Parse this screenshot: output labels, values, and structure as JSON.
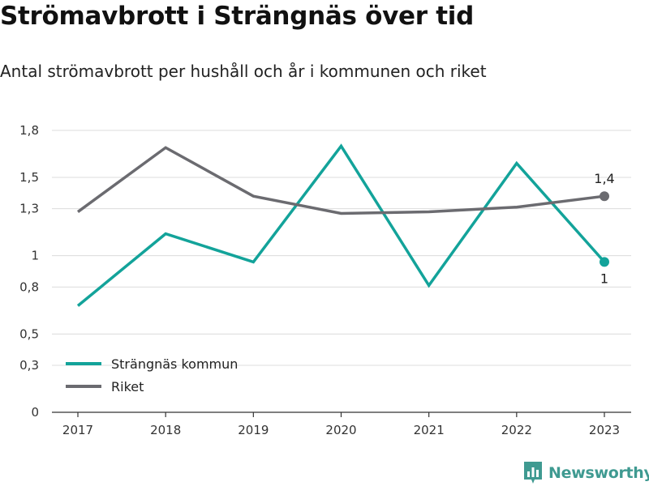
{
  "header": {
    "title": "Strömavbrott i Strängnäs över tid",
    "subtitle": "Antal strömavbrott per hushåll och år i kommunen och riket"
  },
  "brand": {
    "name": "Newsworthy"
  },
  "chart_data": {
    "type": "line",
    "title": "Strömavbrott i Strängnäs över tid",
    "subtitle": "Antal strömavbrott per hushåll och år i kommunen och riket",
    "xlabel": "",
    "ylabel": "",
    "categories": [
      "2017",
      "2018",
      "2019",
      "2020",
      "2021",
      "2022",
      "2023"
    ],
    "y_ticks": [
      0,
      0.3,
      0.5,
      0.8,
      1,
      1.3,
      1.5,
      1.8
    ],
    "y_tick_labels": [
      "0",
      "0,3",
      "0,5",
      "0,8",
      "1",
      "1,3",
      "1,5",
      "1,8"
    ],
    "ylim": [
      0,
      1.8
    ],
    "grid": "horizontal",
    "legend_position": "bottom-left",
    "series": [
      {
        "name": "Strängnäs kommun",
        "color": "#13a39a",
        "values": [
          0.68,
          1.14,
          0.96,
          1.7,
          0.81,
          1.59,
          0.96
        ],
        "end_label": "1"
      },
      {
        "name": "Riket",
        "color": "#6b6b70",
        "values": [
          1.28,
          1.69,
          1.38,
          1.27,
          1.28,
          1.31,
          1.38
        ],
        "end_label": "1,4"
      }
    ]
  }
}
